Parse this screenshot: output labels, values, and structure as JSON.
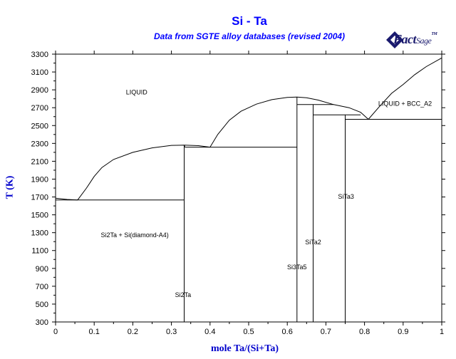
{
  "header": {
    "title": "Si - Ta",
    "subtitle": "Data from SGTE alloy databases (revised 2004)"
  },
  "logo": {
    "word1": "Fact",
    "word2": "Sage",
    "mark": "TM",
    "color": "#1a1a6e"
  },
  "colors": {
    "title": "#0000ff",
    "axis_label": "#0000cc",
    "lines": "#000000"
  },
  "chart_data": {
    "type": "phase-diagram",
    "title": "Si - Ta",
    "subtitle": "Data from SGTE alloy databases (revised 2004)",
    "xlabel": "mole Ta/(Si+Ta)",
    "ylabel": "T (K)",
    "xlim": [
      0,
      1
    ],
    "ylim": [
      300,
      3300
    ],
    "x_ticks": [
      "0",
      "0.1",
      "0.2",
      "0.3",
      "0.4",
      "0.5",
      "0.6",
      "0.7",
      "0.8",
      "0.9",
      "1"
    ],
    "y_ticks": [
      "300",
      "500",
      "700",
      "900",
      "1100",
      "1300",
      "1500",
      "1700",
      "1900",
      "2100",
      "2300",
      "2500",
      "2700",
      "2900",
      "3100",
      "3300"
    ],
    "labels": [
      {
        "text": "LIQUID",
        "x": 0.21,
        "y": 2850
      },
      {
        "text": "LIQUID + BCC_A2",
        "x": 0.905,
        "y": 2720
      },
      {
        "text": "Si2Ta + Si(diamond-A4)",
        "x": 0.205,
        "y": 1250
      },
      {
        "text": "Si2Ta",
        "x": 0.33,
        "y": 580
      },
      {
        "text": "Si3Ta5",
        "x": 0.625,
        "y": 890
      },
      {
        "text": "SiTa2",
        "x": 0.667,
        "y": 1170
      },
      {
        "text": "SiTa3",
        "x": 0.752,
        "y": 1680
      }
    ],
    "liquidus": [
      {
        "name": "Si side",
        "points": [
          [
            0,
            1687
          ],
          [
            0.03,
            1672
          ],
          [
            0.057,
            1666
          ]
        ]
      },
      {
        "name": "Si2Ta dome",
        "points": [
          [
            0.057,
            1666
          ],
          [
            0.08,
            1800
          ],
          [
            0.1,
            1930
          ],
          [
            0.12,
            2030
          ],
          [
            0.15,
            2120
          ],
          [
            0.2,
            2200
          ],
          [
            0.25,
            2250
          ],
          [
            0.3,
            2278
          ],
          [
            0.333,
            2280
          ],
          [
            0.37,
            2275
          ],
          [
            0.4,
            2258
          ]
        ]
      },
      {
        "name": "Si3Ta5 dome",
        "points": [
          [
            0.4,
            2258
          ],
          [
            0.42,
            2400
          ],
          [
            0.45,
            2560
          ],
          [
            0.48,
            2660
          ],
          [
            0.52,
            2740
          ],
          [
            0.56,
            2790
          ],
          [
            0.6,
            2815
          ],
          [
            0.625,
            2820
          ],
          [
            0.65,
            2812
          ],
          [
            0.68,
            2785
          ],
          [
            0.72,
            2735
          ],
          [
            0.76,
            2700
          ],
          [
            0.79,
            2648
          ],
          [
            0.81,
            2570
          ]
        ]
      },
      {
        "name": "BCC side",
        "points": [
          [
            0.81,
            2570
          ],
          [
            0.84,
            2720
          ],
          [
            0.87,
            2860
          ],
          [
            0.9,
            2960
          ],
          [
            0.93,
            3070
          ],
          [
            0.96,
            3160
          ],
          [
            1.0,
            3258
          ]
        ]
      }
    ],
    "solid_boundaries": [
      {
        "name": "eutectic Si-Si2Ta",
        "points": [
          [
            0,
            1666
          ],
          [
            0.333,
            1666
          ]
        ]
      },
      {
        "name": "Si2Ta line",
        "points": [
          [
            0.333,
            300
          ],
          [
            0.333,
            2280
          ]
        ]
      },
      {
        "name": "Si2Ta top step",
        "points": [
          [
            0.333,
            2280
          ],
          [
            0.335,
            2258
          ]
        ]
      },
      {
        "name": "eutectic Si2Ta-Si3Ta5",
        "points": [
          [
            0.335,
            2258
          ],
          [
            0.625,
            2258
          ]
        ]
      },
      {
        "name": "Si3Ta5 line",
        "points": [
          [
            0.625,
            300
          ],
          [
            0.625,
            2820
          ]
        ]
      },
      {
        "name": "peritectic SiTa2",
        "points": [
          [
            0.625,
            2735
          ],
          [
            0.72,
            2735
          ]
        ]
      },
      {
        "name": "SiTa2 line",
        "points": [
          [
            0.667,
            300
          ],
          [
            0.667,
            2735
          ]
        ]
      },
      {
        "name": "peritectic SiTa3",
        "points": [
          [
            0.667,
            2620
          ],
          [
            0.79,
            2620
          ]
        ]
      },
      {
        "name": "SiTa3 line",
        "points": [
          [
            0.75,
            300
          ],
          [
            0.75,
            2620
          ]
        ]
      },
      {
        "name": "eutectic SiTa3-BCC",
        "points": [
          [
            0.75,
            2570
          ],
          [
            1.0,
            2570
          ]
        ]
      }
    ]
  }
}
